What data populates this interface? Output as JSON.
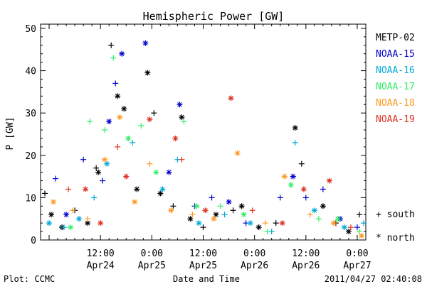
{
  "chart_data": {
    "type": "scatter",
    "title": "Hemispheric Power [GW]",
    "ylabel": "P [GW]",
    "xlabel": "Date and Time",
    "footer_left": "Plot: CCMC",
    "footer_right": "2011/04/27 02:40:08",
    "ylim": [
      0,
      51
    ],
    "yticks": [
      0,
      10,
      20,
      30,
      40,
      50
    ],
    "xlim": [
      "2011-04-23 22:00",
      "2011-04-27 02:00"
    ],
    "xticks": [
      {
        "t": "2011-04-24 12:00",
        "l1": "12:00",
        "l2": "Apr24"
      },
      {
        "t": "2011-04-25 00:00",
        "l1": "0:00",
        "l2": "Apr25"
      },
      {
        "t": "2011-04-25 12:00",
        "l1": "12:00",
        "l2": "Apr25"
      },
      {
        "t": "2011-04-26 00:00",
        "l1": "0:00",
        "l2": "Apr26"
      },
      {
        "t": "2011-04-26 12:00",
        "l1": "12:00",
        "l2": "Apr26"
      },
      {
        "t": "2011-04-27 00:00",
        "l1": "0:00",
        "l2": "Apr27"
      }
    ],
    "marker_legend": [
      {
        "symbol": "+",
        "label": "south"
      },
      {
        "symbol": "*",
        "label": "north"
      }
    ],
    "series": [
      {
        "name": "METP-02",
        "color": "#000000",
        "points": [
          {
            "x": "2011-04-23 23:00",
            "y": 11,
            "m": "+"
          },
          {
            "x": "2011-04-24 00:30",
            "y": 6,
            "m": "*"
          },
          {
            "x": "2011-04-24 03:00",
            "y": 3,
            "m": "*"
          },
          {
            "x": "2011-04-24 06:00",
            "y": 7,
            "m": "+"
          },
          {
            "x": "2011-04-24 09:00",
            "y": 4,
            "m": "*"
          },
          {
            "x": "2011-04-24 11:00",
            "y": 17,
            "m": "+"
          },
          {
            "x": "2011-04-24 11:30",
            "y": 16,
            "m": "*"
          },
          {
            "x": "2011-04-24 14:30",
            "y": 46,
            "m": "+"
          },
          {
            "x": "2011-04-24 16:00",
            "y": 34,
            "m": "*"
          },
          {
            "x": "2011-04-24 17:30",
            "y": 31,
            "m": "*"
          },
          {
            "x": "2011-04-24 20:30",
            "y": 12,
            "m": "*"
          },
          {
            "x": "2011-04-24 23:00",
            "y": 39.5,
            "m": "*"
          },
          {
            "x": "2011-04-25 00:30",
            "y": 30,
            "m": "+"
          },
          {
            "x": "2011-04-25 02:00",
            "y": 11,
            "m": "*"
          },
          {
            "x": "2011-04-25 05:00",
            "y": 8,
            "m": "+"
          },
          {
            "x": "2011-04-25 07:00",
            "y": 29,
            "m": "*"
          },
          {
            "x": "2011-04-25 09:00",
            "y": 5,
            "m": "*"
          },
          {
            "x": "2011-04-25 12:00",
            "y": 3,
            "m": "+"
          },
          {
            "x": "2011-04-25 15:00",
            "y": 6,
            "m": "*"
          },
          {
            "x": "2011-04-25 19:00",
            "y": 7,
            "m": "+"
          },
          {
            "x": "2011-04-25 21:00",
            "y": 8,
            "m": "*"
          },
          {
            "x": "2011-04-26 01:00",
            "y": 3,
            "m": "*"
          },
          {
            "x": "2011-04-26 05:00",
            "y": 4,
            "m": "+"
          },
          {
            "x": "2011-04-26 09:30",
            "y": 26.5,
            "m": "*"
          },
          {
            "x": "2011-04-26 11:00",
            "y": 18,
            "m": "+"
          },
          {
            "x": "2011-04-26 16:00",
            "y": 8,
            "m": "*"
          },
          {
            "x": "2011-04-26 19:00",
            "y": 4,
            "m": "+"
          },
          {
            "x": "2011-04-26 22:00",
            "y": 2,
            "m": "*"
          },
          {
            "x": "2011-04-27 00:30",
            "y": 6,
            "m": "+"
          }
        ]
      },
      {
        "name": "NOAA-15",
        "color": "#0000cc",
        "points": [
          {
            "x": "2011-04-24 01:30",
            "y": 14.5,
            "m": "+"
          },
          {
            "x": "2011-04-24 04:00",
            "y": 6,
            "m": "*"
          },
          {
            "x": "2011-04-24 08:00",
            "y": 19,
            "m": "+"
          },
          {
            "x": "2011-04-24 12:30",
            "y": 14,
            "m": "+"
          },
          {
            "x": "2011-04-24 14:00",
            "y": 28,
            "m": "*"
          },
          {
            "x": "2011-04-24 15:30",
            "y": 37,
            "m": "+"
          },
          {
            "x": "2011-04-24 17:00",
            "y": 44,
            "m": "*"
          },
          {
            "x": "2011-04-24 22:30",
            "y": 46.5,
            "m": "*"
          },
          {
            "x": "2011-04-25 04:00",
            "y": 16,
            "m": "*"
          },
          {
            "x": "2011-04-25 06:30",
            "y": 32,
            "m": "*"
          },
          {
            "x": "2011-04-25 10:00",
            "y": 8,
            "m": "+"
          },
          {
            "x": "2011-04-25 14:00",
            "y": 10,
            "m": "+"
          },
          {
            "x": "2011-04-25 18:00",
            "y": 9,
            "m": "*"
          },
          {
            "x": "2011-04-25 22:00",
            "y": 4,
            "m": "+"
          },
          {
            "x": "2011-04-26 06:00",
            "y": 10,
            "m": "+"
          },
          {
            "x": "2011-04-26 09:00",
            "y": 15,
            "m": "*"
          },
          {
            "x": "2011-04-26 12:00",
            "y": 10,
            "m": "+"
          },
          {
            "x": "2011-04-26 16:00",
            "y": 12,
            "m": "+"
          },
          {
            "x": "2011-04-26 20:00",
            "y": 5,
            "m": "*"
          },
          {
            "x": "2011-04-27 00:00",
            "y": 3,
            "m": "+"
          }
        ]
      },
      {
        "name": "NOAA-16",
        "color": "#00aadd",
        "points": [
          {
            "x": "2011-04-24 00:00",
            "y": 4,
            "m": "*"
          },
          {
            "x": "2011-04-24 03:30",
            "y": 3,
            "m": "+"
          },
          {
            "x": "2011-04-24 07:00",
            "y": 5,
            "m": "*"
          },
          {
            "x": "2011-04-24 10:30",
            "y": 10,
            "m": "+"
          },
          {
            "x": "2011-04-24 13:30",
            "y": 18,
            "m": "*"
          },
          {
            "x": "2011-04-24 19:30",
            "y": 23,
            "m": "+"
          },
          {
            "x": "2011-04-25 02:30",
            "y": 12,
            "m": "*"
          },
          {
            "x": "2011-04-25 06:00",
            "y": 19,
            "m": "+"
          },
          {
            "x": "2011-04-25 11:00",
            "y": 4,
            "m": "*"
          },
          {
            "x": "2011-04-25 17:00",
            "y": 6,
            "m": "+"
          },
          {
            "x": "2011-04-25 23:00",
            "y": 4,
            "m": "*"
          },
          {
            "x": "2011-04-26 04:00",
            "y": 2,
            "m": "+"
          },
          {
            "x": "2011-04-26 09:30",
            "y": 23,
            "m": "+"
          },
          {
            "x": "2011-04-26 14:00",
            "y": 7,
            "m": "*"
          },
          {
            "x": "2011-04-26 21:00",
            "y": 3,
            "m": "*"
          },
          {
            "x": "2011-04-27 01:30",
            "y": 4,
            "m": "+"
          }
        ]
      },
      {
        "name": "NOAA-17",
        "color": "#33ee66",
        "points": [
          {
            "x": "2011-04-24 05:00",
            "y": 3,
            "m": "*"
          },
          {
            "x": "2011-04-24 09:30",
            "y": 28,
            "m": "+"
          },
          {
            "x": "2011-04-24 13:00",
            "y": 26,
            "m": "+"
          },
          {
            "x": "2011-04-24 15:00",
            "y": 43,
            "m": "+"
          },
          {
            "x": "2011-04-24 18:30",
            "y": 24,
            "m": "*"
          },
          {
            "x": "2011-04-24 21:30",
            "y": 27,
            "m": "+"
          },
          {
            "x": "2011-04-25 01:00",
            "y": 16,
            "m": "*"
          },
          {
            "x": "2011-04-25 07:30",
            "y": 28,
            "m": "+"
          },
          {
            "x": "2011-04-25 10:30",
            "y": 8,
            "m": "*"
          },
          {
            "x": "2011-04-25 16:00",
            "y": 8,
            "m": "+"
          },
          {
            "x": "2011-04-25 21:30",
            "y": 6,
            "m": "*"
          },
          {
            "x": "2011-04-26 03:00",
            "y": 2,
            "m": "+"
          },
          {
            "x": "2011-04-26 08:30",
            "y": 13,
            "m": "*"
          },
          {
            "x": "2011-04-26 15:00",
            "y": 5,
            "m": "+"
          },
          {
            "x": "2011-04-26 19:30",
            "y": 5,
            "m": "*"
          },
          {
            "x": "2011-04-27 00:30",
            "y": 2,
            "m": "+"
          }
        ]
      },
      {
        "name": "NOAA-18",
        "color": "#ff9922",
        "points": [
          {
            "x": "2011-04-24 01:00",
            "y": 9,
            "m": "*"
          },
          {
            "x": "2011-04-24 05:30",
            "y": 7,
            "m": "+"
          },
          {
            "x": "2011-04-24 09:00",
            "y": 5,
            "m": "+"
          },
          {
            "x": "2011-04-24 13:00",
            "y": 19,
            "m": "*"
          },
          {
            "x": "2011-04-24 16:30",
            "y": 29,
            "m": "*"
          },
          {
            "x": "2011-04-24 20:00",
            "y": 9,
            "m": "*"
          },
          {
            "x": "2011-04-24 23:30",
            "y": 18,
            "m": "+"
          },
          {
            "x": "2011-04-25 04:30",
            "y": 7,
            "m": "*"
          },
          {
            "x": "2011-04-25 09:30",
            "y": 6,
            "m": "+"
          },
          {
            "x": "2011-04-25 14:30",
            "y": 5,
            "m": "*"
          },
          {
            "x": "2011-04-25 20:00",
            "y": 20.5,
            "m": "*"
          },
          {
            "x": "2011-04-26 02:30",
            "y": 4,
            "m": "+"
          },
          {
            "x": "2011-04-26 07:00",
            "y": 15,
            "m": "*"
          },
          {
            "x": "2011-04-26 13:00",
            "y": 6,
            "m": "+"
          },
          {
            "x": "2011-04-26 18:30",
            "y": 4,
            "m": "*"
          },
          {
            "x": "2011-04-27 01:00",
            "y": 1,
            "m": "*"
          }
        ]
      },
      {
        "name": "NOAA-19",
        "color": "#dd3322",
        "points": [
          {
            "x": "2011-04-24 04:30",
            "y": 12,
            "m": "+"
          },
          {
            "x": "2011-04-24 08:30",
            "y": 12,
            "m": "*"
          },
          {
            "x": "2011-04-24 12:00",
            "y": 4,
            "m": "*"
          },
          {
            "x": "2011-04-24 16:00",
            "y": 22,
            "m": "+"
          },
          {
            "x": "2011-04-24 18:00",
            "y": 15,
            "m": "*"
          },
          {
            "x": "2011-04-24 23:30",
            "y": 28.5,
            "m": "*"
          },
          {
            "x": "2011-04-25 05:30",
            "y": 24,
            "m": "*"
          },
          {
            "x": "2011-04-25 07:00",
            "y": 19,
            "m": "+"
          },
          {
            "x": "2011-04-25 12:30",
            "y": 7,
            "m": "*"
          },
          {
            "x": "2011-04-25 18:30",
            "y": 33.5,
            "m": "*"
          },
          {
            "x": "2011-04-25 23:30",
            "y": 7,
            "m": "+"
          },
          {
            "x": "2011-04-26 06:30",
            "y": 4,
            "m": "*"
          },
          {
            "x": "2011-04-26 11:30",
            "y": 12,
            "m": "*"
          },
          {
            "x": "2011-04-26 17:30",
            "y": 14,
            "m": "*"
          },
          {
            "x": "2011-04-26 22:30",
            "y": 3,
            "m": "+"
          }
        ]
      }
    ]
  }
}
